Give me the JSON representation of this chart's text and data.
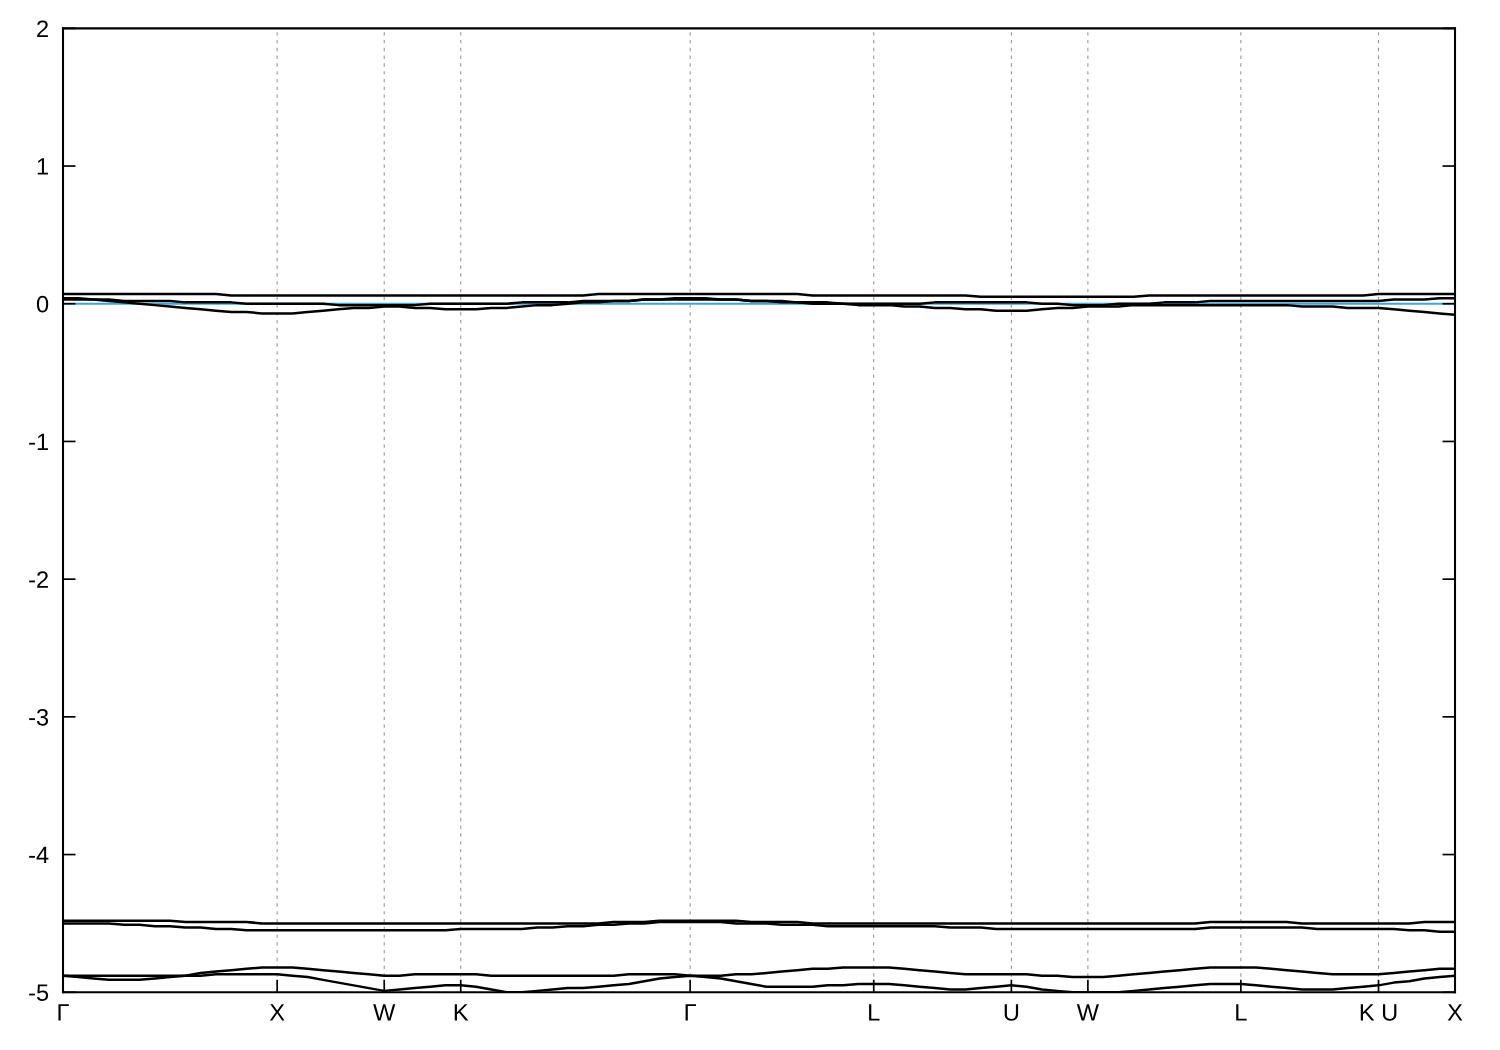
{
  "chart_data": {
    "type": "line",
    "categories": [
      "Γ",
      null,
      null,
      null,
      null,
      null,
      null,
      null,
      null,
      null,
      null,
      null,
      null,
      null,
      "X",
      null,
      null,
      null,
      null,
      null,
      null,
      "W",
      null,
      null,
      null,
      null,
      "K",
      null,
      null,
      null,
      null,
      null,
      null,
      null,
      null,
      null,
      null,
      null,
      null,
      null,
      null,
      "Γ",
      null,
      null,
      null,
      null,
      null,
      null,
      null,
      null,
      null,
      null,
      null,
      "L",
      null,
      null,
      null,
      null,
      null,
      null,
      null,
      null,
      "U",
      null,
      null,
      null,
      null,
      "W",
      null,
      null,
      null,
      null,
      null,
      null,
      null,
      null,
      null,
      "L",
      null,
      null,
      null,
      null,
      null,
      null,
      null,
      null,
      "K U",
      null,
      null,
      null,
      null,
      "X"
    ],
    "series": [
      {
        "color": "#000000",
        "values": [
          0.07,
          0.07,
          0.07,
          0.07,
          0.07,
          0.07,
          0.07,
          0.07,
          0.07,
          0.07,
          0.07,
          0.06,
          0.06,
          0.06,
          0.06,
          0.06,
          0.06,
          0.06,
          0.06,
          0.06,
          0.06,
          0.06,
          0.06,
          0.06,
          0.06,
          0.06,
          0.06,
          0.06,
          0.06,
          0.06,
          0.06,
          0.06,
          0.06,
          0.06,
          0.06,
          0.07,
          0.07,
          0.07,
          0.07,
          0.07,
          0.07,
          0.07,
          0.07,
          0.07,
          0.07,
          0.07,
          0.07,
          0.07,
          0.07,
          0.06,
          0.06,
          0.06,
          0.06,
          0.06,
          0.06,
          0.06,
          0.06,
          0.06,
          0.06,
          0.06,
          0.05,
          0.05,
          0.05,
          0.05,
          0.05,
          0.05,
          0.05,
          0.05,
          0.05,
          0.05,
          0.05,
          0.06,
          0.06,
          0.06,
          0.06,
          0.06,
          0.06,
          0.06,
          0.06,
          0.06,
          0.06,
          0.06,
          0.06,
          0.06,
          0.06,
          0.06,
          0.07,
          0.07,
          0.07,
          0.07,
          0.07,
          0.07
        ]
      },
      {
        "color": "#000000",
        "values": [
          0.04,
          0.04,
          0.03,
          0.02,
          0.01,
          0.0,
          -0.01,
          -0.02,
          -0.03,
          -0.04,
          -0.05,
          -0.06,
          -0.06,
          -0.07,
          -0.07,
          -0.07,
          -0.06,
          -0.05,
          -0.04,
          -0.03,
          -0.03,
          -0.02,
          -0.02,
          -0.03,
          -0.03,
          -0.04,
          -0.04,
          -0.04,
          -0.03,
          -0.03,
          -0.02,
          -0.01,
          -0.01,
          0.0,
          0.01,
          0.01,
          0.02,
          0.02,
          0.03,
          0.03,
          0.04,
          0.04,
          0.04,
          0.03,
          0.03,
          0.02,
          0.02,
          0.01,
          0.01,
          0.0,
          0.0,
          0.0,
          -0.01,
          -0.01,
          -0.01,
          -0.02,
          -0.02,
          -0.03,
          -0.03,
          -0.04,
          -0.04,
          -0.05,
          -0.05,
          -0.05,
          -0.04,
          -0.03,
          -0.03,
          -0.02,
          -0.02,
          -0.02,
          -0.01,
          -0.01,
          -0.01,
          -0.01,
          -0.01,
          -0.01,
          -0.01,
          -0.01,
          -0.01,
          -0.01,
          -0.01,
          -0.02,
          -0.02,
          -0.02,
          -0.03,
          -0.03,
          -0.03,
          -0.04,
          -0.05,
          -0.06,
          -0.07,
          -0.08
        ]
      },
      {
        "color": "#000000",
        "values": [
          0.03,
          0.03,
          0.03,
          0.03,
          0.02,
          0.02,
          0.02,
          0.02,
          0.01,
          0.01,
          0.01,
          0.01,
          0.0,
          0.0,
          0.0,
          0.0,
          0.0,
          0.0,
          -0.01,
          -0.01,
          -0.01,
          -0.01,
          -0.01,
          -0.01,
          0.0,
          0.0,
          0.0,
          0.0,
          0.0,
          0.0,
          0.01,
          0.01,
          0.01,
          0.01,
          0.02,
          0.02,
          0.02,
          0.02,
          0.03,
          0.03,
          0.03,
          0.03,
          0.03,
          0.03,
          0.03,
          0.02,
          0.02,
          0.02,
          0.01,
          0.01,
          0.01,
          0.0,
          0.0,
          0.0,
          0.0,
          0.0,
          0.0,
          0.01,
          0.01,
          0.01,
          0.01,
          0.01,
          0.01,
          0.01,
          0.0,
          0.0,
          -0.01,
          -0.01,
          -0.01,
          0.0,
          0.0,
          0.0,
          0.01,
          0.01,
          0.01,
          0.02,
          0.02,
          0.02,
          0.02,
          0.02,
          0.02,
          0.02,
          0.02,
          0.02,
          0.02,
          0.02,
          0.02,
          0.03,
          0.03,
          0.03,
          0.04,
          0.04
        ]
      },
      {
        "color": "#000000",
        "values": [
          -4.48,
          -4.48,
          -4.48,
          -4.48,
          -4.48,
          -4.48,
          -4.48,
          -4.48,
          -4.49,
          -4.49,
          -4.49,
          -4.49,
          -4.49,
          -4.5,
          -4.5,
          -4.5,
          -4.5,
          -4.5,
          -4.5,
          -4.5,
          -4.5,
          -4.5,
          -4.5,
          -4.5,
          -4.5,
          -4.5,
          -4.5,
          -4.5,
          -4.5,
          -4.5,
          -4.5,
          -4.5,
          -4.5,
          -4.5,
          -4.5,
          -4.5,
          -4.49,
          -4.49,
          -4.49,
          -4.48,
          -4.48,
          -4.48,
          -4.48,
          -4.48,
          -4.48,
          -4.49,
          -4.49,
          -4.49,
          -4.49,
          -4.5,
          -4.5,
          -4.5,
          -4.5,
          -4.5,
          -4.5,
          -4.5,
          -4.5,
          -4.5,
          -4.5,
          -4.5,
          -4.5,
          -4.5,
          -4.5,
          -4.5,
          -4.5,
          -4.5,
          -4.5,
          -4.5,
          -4.5,
          -4.5,
          -4.5,
          -4.5,
          -4.5,
          -4.5,
          -4.5,
          -4.49,
          -4.49,
          -4.49,
          -4.49,
          -4.49,
          -4.49,
          -4.5,
          -4.5,
          -4.5,
          -4.5,
          -4.5,
          -4.5,
          -4.5,
          -4.5,
          -4.49,
          -4.49,
          -4.49
        ]
      },
      {
        "color": "#000000",
        "values": [
          -4.5,
          -4.5,
          -4.5,
          -4.5,
          -4.51,
          -4.51,
          -4.52,
          -4.52,
          -4.53,
          -4.53,
          -4.54,
          -4.54,
          -4.55,
          -4.55,
          -4.55,
          -4.55,
          -4.55,
          -4.55,
          -4.55,
          -4.55,
          -4.55,
          -4.55,
          -4.55,
          -4.55,
          -4.55,
          -4.55,
          -4.54,
          -4.54,
          -4.54,
          -4.54,
          -4.54,
          -4.53,
          -4.53,
          -4.52,
          -4.52,
          -4.51,
          -4.51,
          -4.5,
          -4.5,
          -4.49,
          -4.49,
          -4.49,
          -4.49,
          -4.49,
          -4.5,
          -4.5,
          -4.5,
          -4.51,
          -4.51,
          -4.51,
          -4.52,
          -4.52,
          -4.52,
          -4.52,
          -4.52,
          -4.52,
          -4.52,
          -4.52,
          -4.53,
          -4.53,
          -4.53,
          -4.54,
          -4.54,
          -4.54,
          -4.54,
          -4.54,
          -4.54,
          -4.54,
          -4.54,
          -4.54,
          -4.54,
          -4.54,
          -4.54,
          -4.54,
          -4.54,
          -4.53,
          -4.53,
          -4.53,
          -4.53,
          -4.53,
          -4.53,
          -4.53,
          -4.54,
          -4.54,
          -4.54,
          -4.54,
          -4.54,
          -4.54,
          -4.55,
          -4.55,
          -4.56,
          -4.56
        ]
      },
      {
        "color": "#000000",
        "values": [
          -4.88,
          -4.89,
          -4.9,
          -4.91,
          -4.91,
          -4.91,
          -4.9,
          -4.89,
          -4.88,
          -4.86,
          -4.85,
          -4.84,
          -4.83,
          -4.82,
          -4.82,
          -4.82,
          -4.83,
          -4.84,
          -4.85,
          -4.86,
          -4.87,
          -4.88,
          -4.88,
          -4.87,
          -4.87,
          -4.87,
          -4.87,
          -4.87,
          -4.88,
          -4.88,
          -4.88,
          -4.88,
          -4.88,
          -4.88,
          -4.88,
          -4.88,
          -4.88,
          -4.87,
          -4.87,
          -4.87,
          -4.87,
          -4.88,
          -4.88,
          -4.88,
          -4.87,
          -4.87,
          -4.86,
          -4.85,
          -4.84,
          -4.83,
          -4.83,
          -4.82,
          -4.82,
          -4.82,
          -4.82,
          -4.83,
          -4.84,
          -4.85,
          -4.86,
          -4.87,
          -4.87,
          -4.87,
          -4.87,
          -4.87,
          -4.88,
          -4.88,
          -4.89,
          -4.89,
          -4.89,
          -4.88,
          -4.87,
          -4.86,
          -4.85,
          -4.84,
          -4.83,
          -4.82,
          -4.82,
          -4.82,
          -4.82,
          -4.83,
          -4.84,
          -4.85,
          -4.86,
          -4.87,
          -4.87,
          -4.87,
          -4.87,
          -4.86,
          -4.85,
          -4.84,
          -4.83,
          -4.83
        ]
      },
      {
        "color": "#000000",
        "values": [
          -4.88,
          -4.88,
          -4.88,
          -4.88,
          -4.88,
          -4.88,
          -4.88,
          -4.88,
          -4.88,
          -4.88,
          -4.87,
          -4.87,
          -4.87,
          -4.87,
          -4.87,
          -4.88,
          -4.89,
          -4.91,
          -4.93,
          -4.95,
          -4.97,
          -4.99,
          -4.98,
          -4.97,
          -4.96,
          -4.95,
          -4.95,
          -4.96,
          -4.98,
          -5.0,
          -5.0,
          -4.99,
          -4.98,
          -4.97,
          -4.97,
          -4.96,
          -4.95,
          -4.94,
          -4.92,
          -4.9,
          -4.89,
          -4.88,
          -4.89,
          -4.9,
          -4.92,
          -4.94,
          -4.96,
          -4.96,
          -4.96,
          -4.96,
          -4.95,
          -4.95,
          -4.94,
          -4.94,
          -4.94,
          -4.95,
          -4.96,
          -4.97,
          -4.98,
          -4.98,
          -4.97,
          -4.96,
          -4.95,
          -4.96,
          -4.98,
          -4.99,
          -5.0,
          -5.0,
          -5.0,
          -5.0,
          -4.99,
          -4.98,
          -4.97,
          -4.96,
          -4.95,
          -4.94,
          -4.94,
          -4.94,
          -4.95,
          -4.96,
          -4.97,
          -4.98,
          -4.98,
          -4.98,
          -4.97,
          -4.96,
          -4.95,
          -4.93,
          -4.92,
          -4.9,
          -4.89,
          -4.88
        ]
      }
    ],
    "ylim": [
      -5,
      2
    ],
    "yticks": [
      -5,
      -4,
      -3,
      -2,
      -1,
      0,
      1,
      2
    ],
    "ref_lines": [
      {
        "axis": "y",
        "value": 0,
        "color": "#3ba6d8"
      }
    ],
    "grid": "x",
    "marker": "none",
    "line_style": "solid"
  }
}
